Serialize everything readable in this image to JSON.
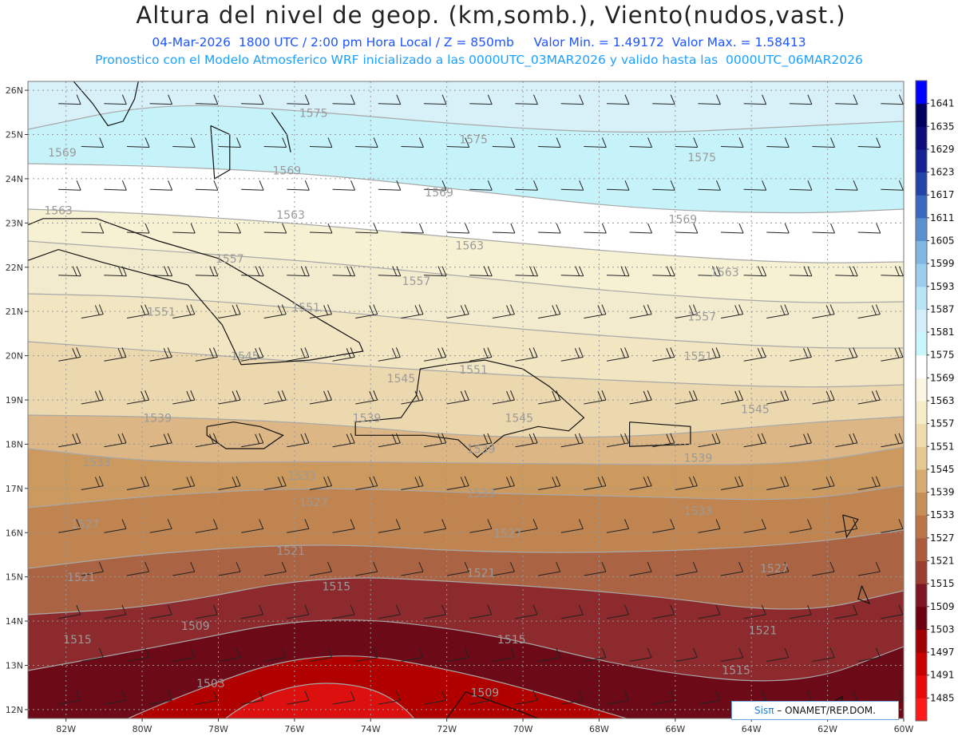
{
  "title": "Altura del nivel de geop. (km,somb.), Viento(nudos,vast.)",
  "subtitle1": "04-Mar-2026  1800 UTC / 2:00 pm Hora Local / Z = 850mb     Valor Min. = 1.49172  Valor Max. = 1.58413",
  "subtitle2": "Pronostico con el Modelo Atmosferico WRF inicializado a las 0000UTC_03MAR2026 y valido hasta las  0000UTC_06MAR2026",
  "credit_logo": "Sisπ",
  "credit_text": " – ONAMET/REP.DOM.",
  "map": {
    "lon_range": [
      -83,
      -60
    ],
    "lat_range": [
      11.8,
      26.2
    ],
    "lat_ticks": [
      "12N",
      "13N",
      "14N",
      "15N",
      "16N",
      "17N",
      "18N",
      "19N",
      "20N",
      "21N",
      "22N",
      "23N",
      "24N",
      "25N",
      "26N"
    ],
    "lon_ticks": [
      "82W",
      "80W",
      "78W",
      "76W",
      "74W",
      "72W",
      "70W",
      "68W",
      "66W",
      "64W",
      "62W",
      "60W"
    ]
  },
  "contour_labels": [
    {
      "text": "1575",
      "lon": -75.5,
      "lat": 25.4
    },
    {
      "text": "1575",
      "lon": -71.3,
      "lat": 24.8
    },
    {
      "text": "1575",
      "lon": -65.3,
      "lat": 24.4
    },
    {
      "text": "1569",
      "lon": -82.1,
      "lat": 24.5
    },
    {
      "text": "1569",
      "lon": -76.2,
      "lat": 24.1
    },
    {
      "text": "1569",
      "lon": -72.2,
      "lat": 23.6
    },
    {
      "text": "1569",
      "lon": -65.8,
      "lat": 23.0
    },
    {
      "text": "1563",
      "lon": -82.2,
      "lat": 23.2
    },
    {
      "text": "1563",
      "lon": -76.1,
      "lat": 23.1
    },
    {
      "text": "1563",
      "lon": -71.4,
      "lat": 22.4
    },
    {
      "text": "1563",
      "lon": -64.7,
      "lat": 21.8
    },
    {
      "text": "1557",
      "lon": -77.7,
      "lat": 22.1
    },
    {
      "text": "1557",
      "lon": -72.8,
      "lat": 21.6
    },
    {
      "text": "1557",
      "lon": -65.3,
      "lat": 20.8
    },
    {
      "text": "1551",
      "lon": -79.5,
      "lat": 20.9
    },
    {
      "text": "1551",
      "lon": -75.7,
      "lat": 21.0
    },
    {
      "text": "1551",
      "lon": -71.3,
      "lat": 19.6
    },
    {
      "text": "1551",
      "lon": -65.4,
      "lat": 19.9
    },
    {
      "text": "1545",
      "lon": -77.3,
      "lat": 19.9
    },
    {
      "text": "1545",
      "lon": -73.2,
      "lat": 19.4
    },
    {
      "text": "1545",
      "lon": -70.1,
      "lat": 18.5
    },
    {
      "text": "1545",
      "lon": -63.9,
      "lat": 18.7
    },
    {
      "text": "1539",
      "lon": -79.6,
      "lat": 18.5
    },
    {
      "text": "1539",
      "lon": -74.1,
      "lat": 18.5
    },
    {
      "text": "1539",
      "lon": -71.1,
      "lat": 17.8
    },
    {
      "text": "1539",
      "lon": -65.4,
      "lat": 17.6
    },
    {
      "text": "1533",
      "lon": -81.2,
      "lat": 17.5
    },
    {
      "text": "1533",
      "lon": -75.8,
      "lat": 17.2
    },
    {
      "text": "1533",
      "lon": -71.1,
      "lat": 16.8
    },
    {
      "text": "1533",
      "lon": -65.4,
      "lat": 16.4
    },
    {
      "text": "1527",
      "lon": -81.5,
      "lat": 16.1
    },
    {
      "text": "1527",
      "lon": -75.5,
      "lat": 16.6
    },
    {
      "text": "1527",
      "lon": -70.4,
      "lat": 15.9
    },
    {
      "text": "1527",
      "lon": -63.4,
      "lat": 15.1
    },
    {
      "text": "1521",
      "lon": -81.6,
      "lat": 14.9
    },
    {
      "text": "1521",
      "lon": -76.1,
      "lat": 15.5
    },
    {
      "text": "1521",
      "lon": -71.1,
      "lat": 15.0
    },
    {
      "text": "1521",
      "lon": -63.7,
      "lat": 13.7
    },
    {
      "text": "1515",
      "lon": -81.7,
      "lat": 13.5
    },
    {
      "text": "1515",
      "lon": -74.9,
      "lat": 14.7
    },
    {
      "text": "1515",
      "lon": -70.3,
      "lat": 13.5
    },
    {
      "text": "1515",
      "lon": -64.4,
      "lat": 12.8
    },
    {
      "text": "1509",
      "lon": -78.6,
      "lat": 13.8
    },
    {
      "text": "1509",
      "lon": -71.0,
      "lat": 12.3
    },
    {
      "text": "1503",
      "lon": -78.2,
      "lat": 12.5
    }
  ],
  "legend": {
    "levels": [
      "1485",
      "1491",
      "1497",
      "1503",
      "1509",
      "1515",
      "1521",
      "1527",
      "1533",
      "1539",
      "1545",
      "1551",
      "1557",
      "1563",
      "1569",
      "1575",
      "1581",
      "1587",
      "1593",
      "1599",
      "1605",
      "1611",
      "1617",
      "1623",
      "1629",
      "1635",
      "1641"
    ],
    "colors": [
      "#ff1a1a",
      "#e80a0a",
      "#c80000",
      "#a00000",
      "#6e0012",
      "#7e1524",
      "#9a3c30",
      "#ad5b3c",
      "#bb7448",
      "#c78f58",
      "#d6aa70",
      "#e4c993",
      "#efdcae",
      "#f5ecc8",
      "#fbf6e2",
      "#ffffff",
      "#c9f6fb",
      "#d3eef8",
      "#b9e4f6",
      "#9ccded",
      "#80b6e2",
      "#5a90d0",
      "#3a6ac0",
      "#2244a8",
      "#142294",
      "#0c0c7c",
      "#00005e",
      "#0000ff"
    ]
  },
  "bands": [
    {
      "value": "1575",
      "color": "#d8f0f8"
    },
    {
      "value": "1569",
      "color": "#c6f3fa"
    },
    {
      "value": "1563",
      "color": "#ffffff"
    },
    {
      "value": "1557",
      "color": "#f7f1d4"
    },
    {
      "value": "1551",
      "color": "#f3ebcd"
    },
    {
      "value": "1545",
      "color": "#f1e5c2"
    },
    {
      "value": "1539",
      "color": "#ecd8ae"
    },
    {
      "value": "1533",
      "color": "#dcb684"
    },
    {
      "value": "1527",
      "color": "#cc995f"
    },
    {
      "value": "1521",
      "color": "#bf8450"
    },
    {
      "value": "1515",
      "color": "#ab6443"
    },
    {
      "value": "1509",
      "color": "#8c2a2d"
    },
    {
      "value": "1503",
      "color": "#6c0a18"
    },
    {
      "value": "1497",
      "color": "#b00000"
    },
    {
      "value": "1491",
      "color": "#dd1010"
    }
  ]
}
